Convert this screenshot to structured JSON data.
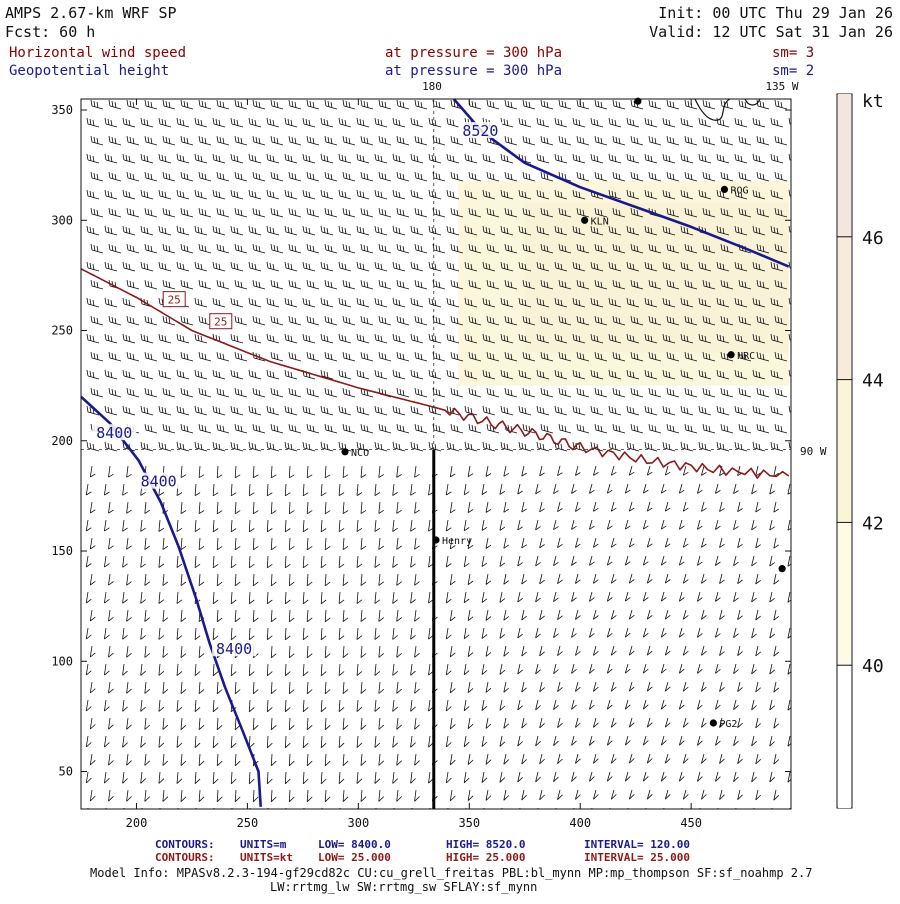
{
  "header": {
    "model": "AMPS 2.67-km WRF SP",
    "fcst": "Fcst:   60 h",
    "init": "Init: 00 UTC Thu 29 Jan 26",
    "valid": "Valid: 12 UTC Sat 31 Jan 26",
    "field1_name": "Horizontal wind speed",
    "field1_level": "at pressure =  300 hPa",
    "field1_sm": "sm= 3",
    "field2_name": "Geopotential height",
    "field2_level": "at pressure =  300 hPa",
    "field2_sm": "sm= 2"
  },
  "colors": {
    "header_dark": "#111111",
    "field1_text": "#8b0000",
    "field2_text": "#1a1a8c",
    "height_contour": "#1a1a8c",
    "speed_contour": "#8b1a1a",
    "shade_light": "#fcf7dc",
    "shade_mid": "#f8efd4",
    "barb": "#111111"
  },
  "map_labels": {
    "lon_180": "180",
    "lon_135w": "135 W",
    "lon_90w": "90 W"
  },
  "stations": [
    {
      "name": "ROG",
      "x": 465,
      "y": 314
    },
    {
      "name": "KLN",
      "x": 402,
      "y": 300
    },
    {
      "name": "HRC",
      "x": 468,
      "y": 239
    },
    {
      "name": "NCO",
      "x": 294,
      "y": 195
    },
    {
      "name": "Henry",
      "x": 335,
      "y": 155
    },
    {
      "name": "PG2",
      "x": 460,
      "y": 72
    },
    {
      "name": "",
      "x": 426,
      "y": 354
    },
    {
      "name": "",
      "x": 491,
      "y": 142
    }
  ],
  "colorbar": {
    "unit": "kt",
    "ticks": [
      "40",
      "42",
      "44",
      "46"
    ]
  },
  "chart_data": {
    "type": "contour",
    "xlim": [
      175,
      495
    ],
    "ylim": [
      33,
      355
    ],
    "xticks": [
      "200",
      "250",
      "300",
      "350",
      "400",
      "450"
    ],
    "yticks": [
      "50",
      "100",
      "150",
      "200",
      "250",
      "300",
      "350"
    ],
    "grid": false,
    "colorbar_range_kt": [
      38,
      48
    ],
    "height_contours": [
      {
        "value": 8520,
        "label": "8520",
        "points": [
          [
            343,
            355
          ],
          [
            356,
            340
          ],
          [
            375,
            326
          ],
          [
            400,
            315
          ],
          [
            425,
            306
          ],
          [
            450,
            297
          ],
          [
            475,
            287
          ],
          [
            494,
            279
          ]
        ]
      },
      {
        "value": 8400,
        "label": "8400",
        "points": [
          [
            175,
            220
          ],
          [
            188,
            208
          ],
          [
            201,
            191
          ],
          [
            211,
            172
          ],
          [
            219,
            152
          ],
          [
            227,
            128
          ],
          [
            233,
            108
          ],
          [
            240,
            88
          ],
          [
            248,
            68
          ],
          [
            255,
            50
          ],
          [
            256,
            34
          ]
        ]
      }
    ],
    "speed_contours": [
      {
        "value": 25,
        "label": "25",
        "points": [
          [
            175,
            278
          ],
          [
            200,
            265
          ],
          [
            225,
            250
          ],
          [
            260,
            236
          ],
          [
            300,
            224
          ],
          [
            335,
            215
          ],
          [
            360,
            208
          ],
          [
            380,
            203
          ],
          [
            400,
            197
          ],
          [
            430,
            191
          ],
          [
            460,
            187
          ],
          [
            494,
            184
          ]
        ]
      }
    ],
    "contour_labels": [
      {
        "text": "8520",
        "x": 355,
        "y": 340,
        "color": "height"
      },
      {
        "text": "8400",
        "x": 190,
        "y": 203,
        "color": "height"
      },
      {
        "text": "8400",
        "x": 210,
        "y": 181,
        "color": "height"
      },
      {
        "text": "8400",
        "x": 244,
        "y": 105,
        "color": "height"
      },
      {
        "text": "25",
        "x": 217,
        "y": 264,
        "color": "speed",
        "box": true
      },
      {
        "text": "25",
        "x": 238,
        "y": 254,
        "color": "speed",
        "box": true
      }
    ],
    "shaded_region_kt": {
      "min": 40,
      "max": 44,
      "x": [
        345,
        494
      ],
      "y": [
        225,
        318
      ]
    },
    "meridians": [
      {
        "label": "180",
        "x": 334
      },
      {
        "label": "90 W",
        "y": 196
      }
    ],
    "cross_section_x": 334,
    "legend_rows": [
      {
        "kind": "CONTOURS:",
        "units": "UNITS=m",
        "low": "LOW=   8400.0",
        "high": "HIGH=   8520.0",
        "interval": "INTERVAL=    120.00"
      },
      {
        "kind": "CONTOURS:",
        "units": "UNITS=kt",
        "low": "LOW=   25.000",
        "high": "HIGH=   25.000",
        "interval": "INTERVAL=    25.000"
      }
    ],
    "footer": [
      "Model Info: MPASv8.2.3-194-gf29cd82c CU:cu_grell_freitas PBL:bl_mynn MP:mp_thompson SF:sf_noahmp 2.7",
      "LW:rrtmg_lw SW:rrtmg_sw SFLAY:sf_mynn"
    ]
  }
}
